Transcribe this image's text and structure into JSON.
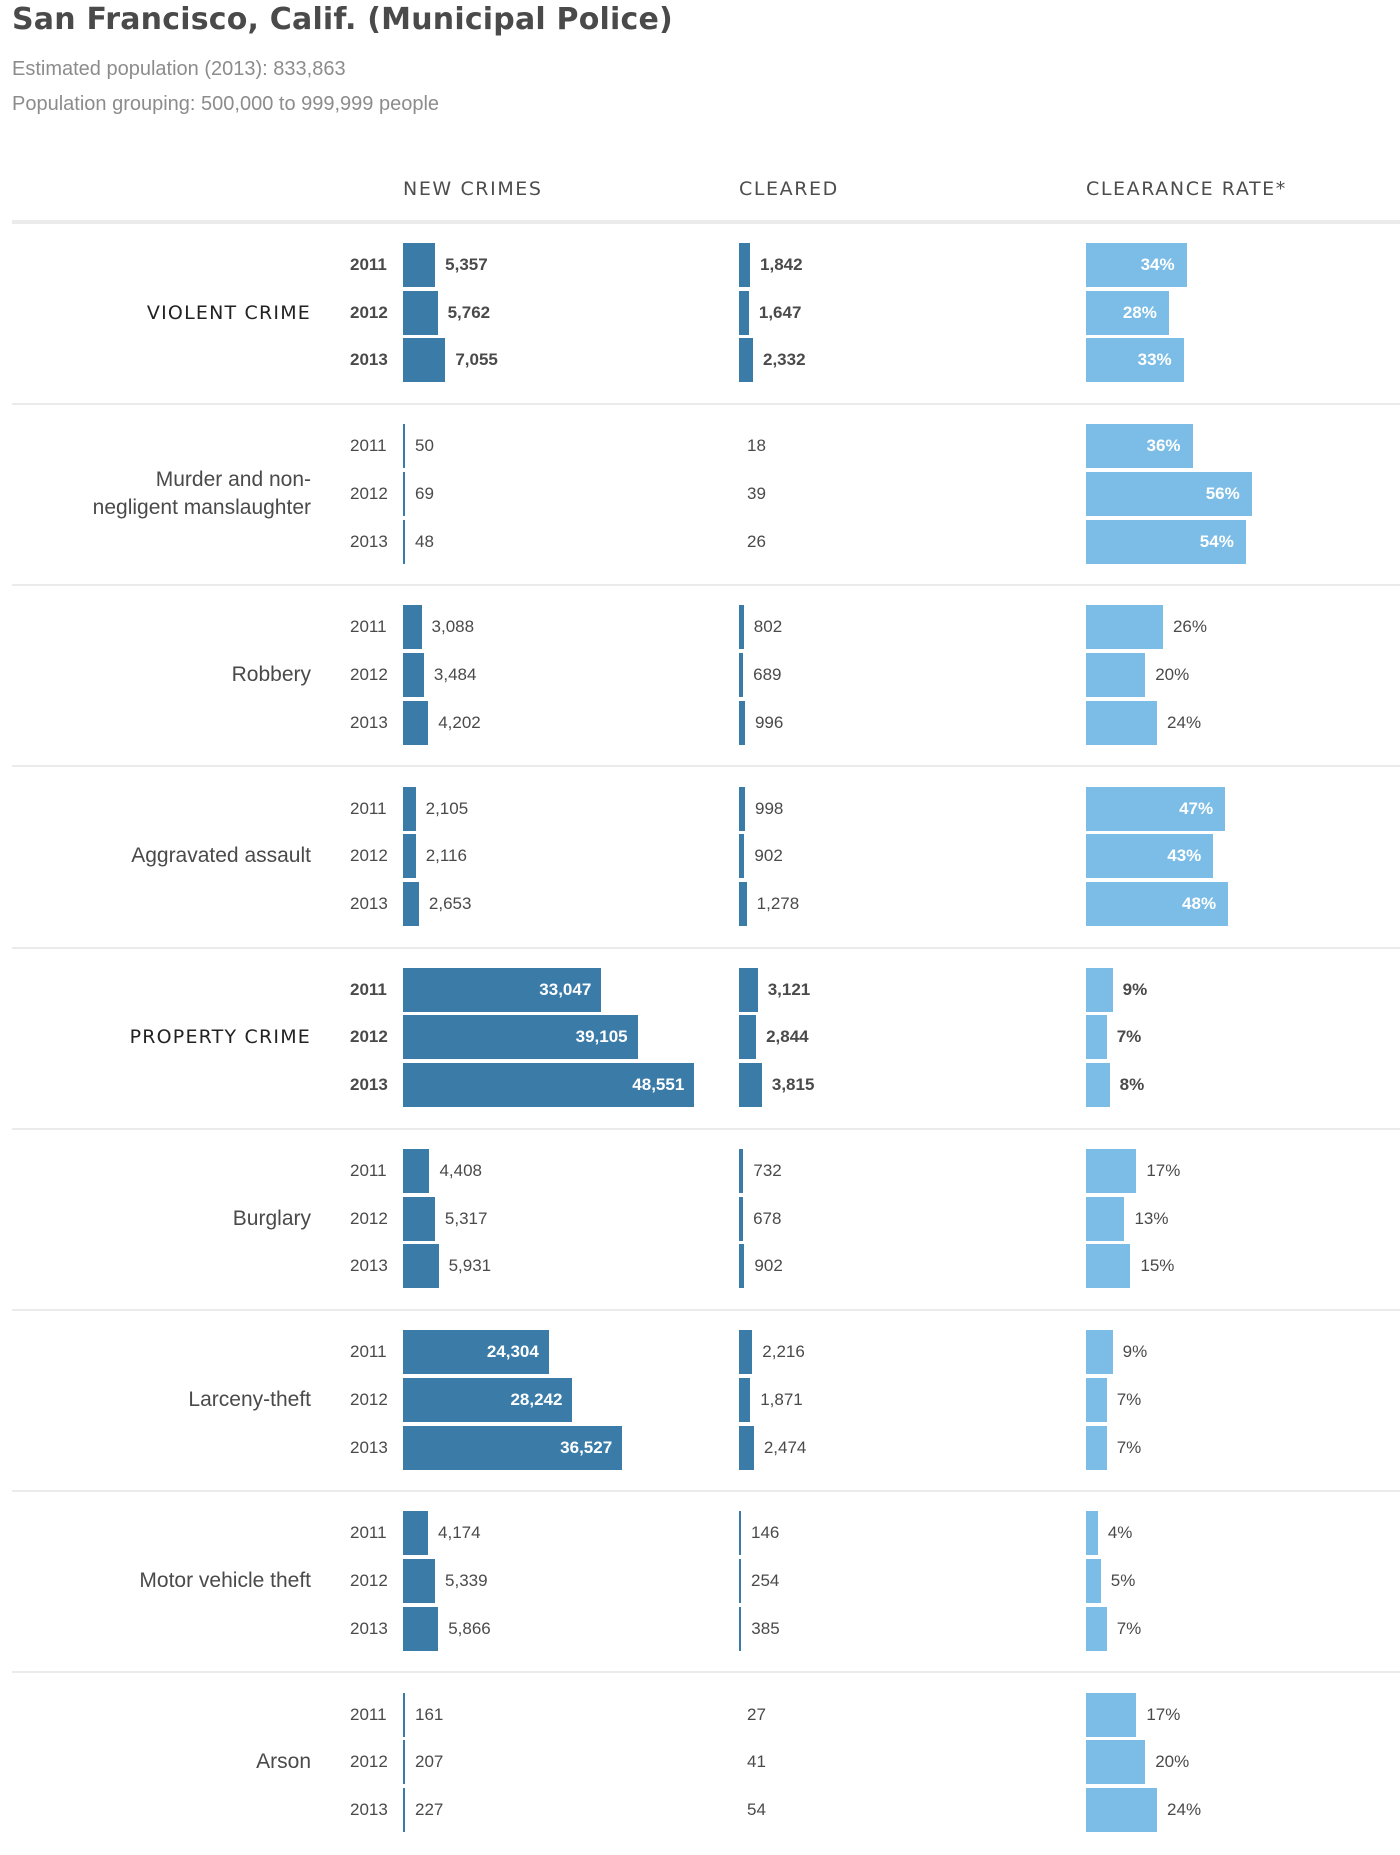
{
  "header": {
    "title": "San Francisco, Calif. (Municipal Police)",
    "population": "Estimated population (2013): 833,863",
    "grouping": "Population grouping: 500,000 to 999,999 people"
  },
  "columns": {
    "new_crimes": "NEW CRIMES",
    "cleared": "CLEARED",
    "clearance_rate": "CLEARANCE RATE*"
  },
  "colors": {
    "count_bar": "#3a7ba8",
    "rate_bar": "#7bbde6",
    "rule": "#ebebeb"
  },
  "chart_data": {
    "type": "bar",
    "title": "San Francisco, Calif. (Municipal Police)",
    "years": [
      "2011",
      "2012",
      "2013"
    ],
    "series_names": [
      "New crimes",
      "Cleared",
      "Clearance rate (%)"
    ],
    "count_axis_max": 50000,
    "rate_axis_max": 100,
    "categories": [
      {
        "label": "VIOLENT CRIME",
        "major": true,
        "new_crimes": [
          5357,
          5762,
          7055
        ],
        "new_crimes_labels": [
          "5,357",
          "5,762",
          "7,055"
        ],
        "cleared": [
          1842,
          1647,
          2332
        ],
        "cleared_labels": [
          "1,842",
          "1,647",
          "2,332"
        ],
        "rate": [
          34,
          28,
          33
        ],
        "rate_labels": [
          "34%",
          "28%",
          "33%"
        ]
      },
      {
        "label": "Murder and non-negligent manslaughter",
        "major": false,
        "new_crimes": [
          50,
          69,
          48
        ],
        "new_crimes_labels": [
          "50",
          "69",
          "48"
        ],
        "cleared": [
          18,
          39,
          26
        ],
        "cleared_labels": [
          "18",
          "39",
          "26"
        ],
        "rate": [
          36,
          56,
          54
        ],
        "rate_labels": [
          "36%",
          "56%",
          "54%"
        ]
      },
      {
        "label": "Robbery",
        "major": false,
        "new_crimes": [
          3088,
          3484,
          4202
        ],
        "new_crimes_labels": [
          "3,088",
          "3,484",
          "4,202"
        ],
        "cleared": [
          802,
          689,
          996
        ],
        "cleared_labels": [
          "802",
          "689",
          "996"
        ],
        "rate": [
          26,
          20,
          24
        ],
        "rate_labels": [
          "26%",
          "20%",
          "24%"
        ]
      },
      {
        "label": "Aggravated assault",
        "major": false,
        "new_crimes": [
          2105,
          2116,
          2653
        ],
        "new_crimes_labels": [
          "2,105",
          "2,116",
          "2,653"
        ],
        "cleared": [
          998,
          902,
          1278
        ],
        "cleared_labels": [
          "998",
          "902",
          "1,278"
        ],
        "rate": [
          47,
          43,
          48
        ],
        "rate_labels": [
          "47%",
          "43%",
          "48%"
        ]
      },
      {
        "label": "PROPERTY CRIME",
        "major": true,
        "new_crimes": [
          33047,
          39105,
          48551
        ],
        "new_crimes_labels": [
          "33,047",
          "39,105",
          "48,551"
        ],
        "cleared": [
          3121,
          2844,
          3815
        ],
        "cleared_labels": [
          "3,121",
          "2,844",
          "3,815"
        ],
        "rate": [
          9,
          7,
          8
        ],
        "rate_labels": [
          "9%",
          "7%",
          "8%"
        ]
      },
      {
        "label": "Burglary",
        "major": false,
        "new_crimes": [
          4408,
          5317,
          5931
        ],
        "new_crimes_labels": [
          "4,408",
          "5,317",
          "5,931"
        ],
        "cleared": [
          732,
          678,
          902
        ],
        "cleared_labels": [
          "732",
          "678",
          "902"
        ],
        "rate": [
          17,
          13,
          15
        ],
        "rate_labels": [
          "17%",
          "13%",
          "15%"
        ]
      },
      {
        "label": "Larceny-theft",
        "major": false,
        "new_crimes": [
          24304,
          28242,
          36527
        ],
        "new_crimes_labels": [
          "24,304",
          "28,242",
          "36,527"
        ],
        "cleared": [
          2216,
          1871,
          2474
        ],
        "cleared_labels": [
          "2,216",
          "1,871",
          "2,474"
        ],
        "rate": [
          9,
          7,
          7
        ],
        "rate_labels": [
          "9%",
          "7%",
          "7%"
        ]
      },
      {
        "label": "Motor vehicle theft",
        "major": false,
        "new_crimes": [
          4174,
          5339,
          5866
        ],
        "new_crimes_labels": [
          "4,174",
          "5,339",
          "5,866"
        ],
        "cleared": [
          146,
          254,
          385
        ],
        "cleared_labels": [
          "146",
          "254",
          "385"
        ],
        "rate": [
          4,
          5,
          7
        ],
        "rate_labels": [
          "4%",
          "5%",
          "7%"
        ]
      },
      {
        "label": "Arson",
        "major": false,
        "new_crimes": [
          161,
          207,
          227
        ],
        "new_crimes_labels": [
          "161",
          "207",
          "227"
        ],
        "cleared": [
          27,
          41,
          54
        ],
        "cleared_labels": [
          "27",
          "41",
          "54"
        ],
        "rate": [
          17,
          20,
          24
        ],
        "rate_labels": [
          "17%",
          "20%",
          "24%"
        ]
      }
    ]
  }
}
